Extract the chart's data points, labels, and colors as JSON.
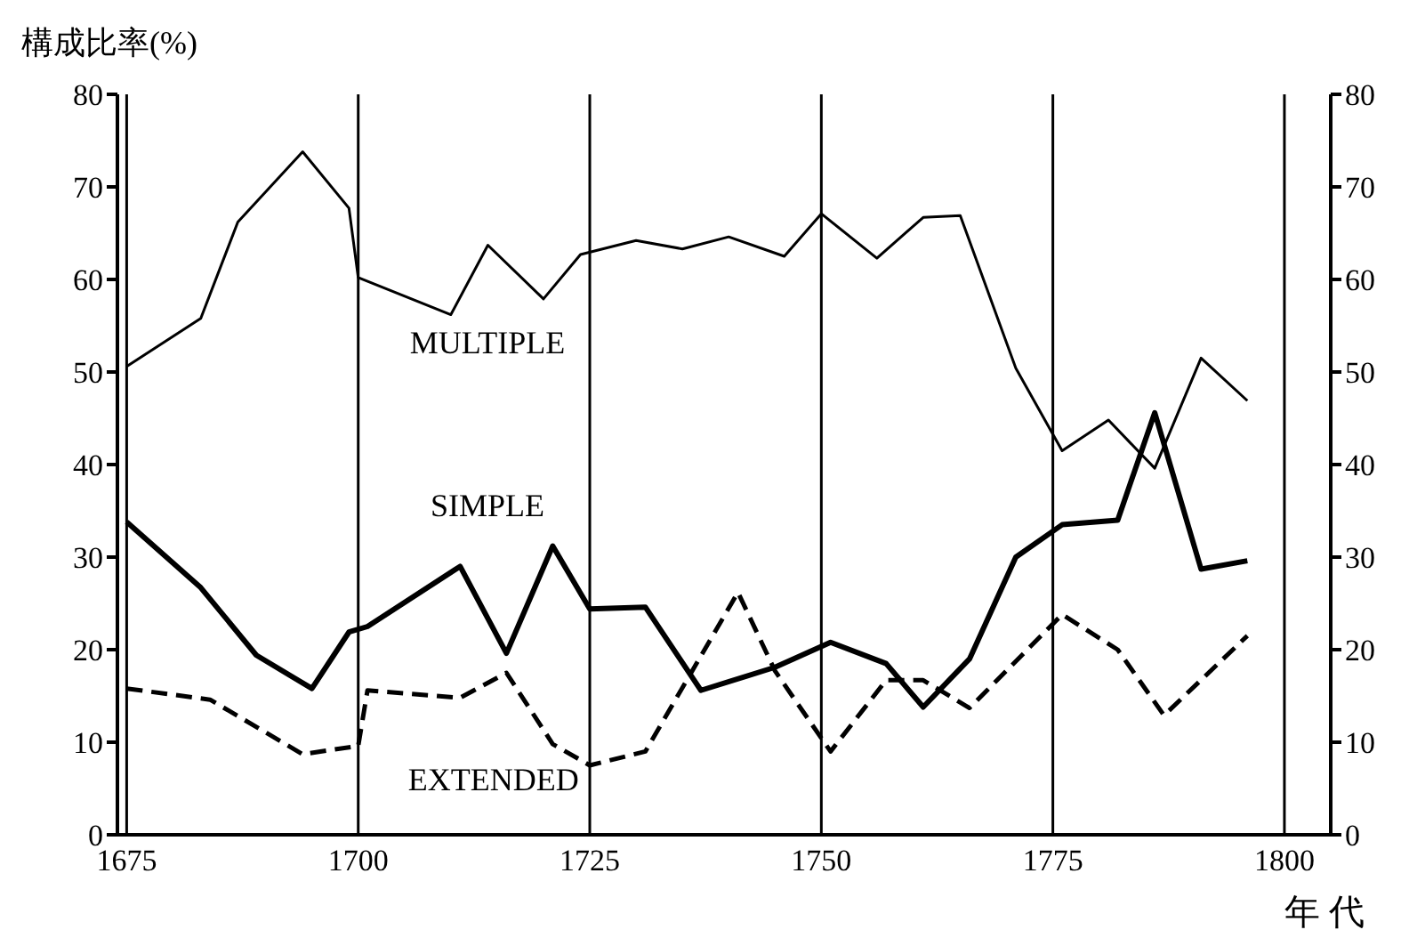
{
  "chart_data": {
    "type": "line",
    "ylabel": "構成比率(%)",
    "xlabel": "年 代",
    "xlim": [
      1674,
      1805
    ],
    "xticks": [
      1675,
      1700,
      1725,
      1750,
      1775,
      1800
    ],
    "ylim": [
      0,
      80
    ],
    "yticks": [
      0,
      10,
      20,
      30,
      40,
      50,
      60,
      70,
      80
    ],
    "y2lim": [
      0,
      80
    ],
    "y2ticks": [
      0,
      10,
      20,
      30,
      40,
      50,
      60,
      70,
      80
    ],
    "grid": "x",
    "marker": "none",
    "series": [
      {
        "name": "MULTIPLE",
        "color": "#000000",
        "line_style": "solid",
        "x": [
          1675,
          1683,
          1687,
          1694,
          1699,
          1700,
          1710,
          1714,
          1720,
          1724,
          1730,
          1735,
          1740,
          1746,
          1750,
          1756,
          1761,
          1765,
          1771,
          1776,
          1781,
          1786,
          1791,
          1796
        ],
        "values": [
          50.6,
          55.8,
          66.2,
          73.8,
          67.7,
          60.2,
          56.2,
          63.7,
          57.9,
          62.7,
          64.2,
          63.3,
          64.6,
          62.5,
          67.1,
          62.3,
          66.7,
          66.9,
          50.4,
          41.5,
          44.8,
          39.6,
          51.5,
          46.9
        ]
      },
      {
        "name": "SIMPLE",
        "color": "#000000",
        "line_style": "solid",
        "x": [
          1675,
          1683,
          1689,
          1695,
          1699,
          1701,
          1711,
          1716,
          1721,
          1725,
          1731,
          1737,
          1745,
          1751,
          1757,
          1761,
          1766,
          1771,
          1776,
          1782,
          1786,
          1791,
          1796
        ],
        "values": [
          33.8,
          26.7,
          19.4,
          15.8,
          21.9,
          22.5,
          29,
          19.6,
          31.2,
          24.4,
          24.6,
          15.6,
          18.1,
          20.8,
          18.5,
          13.8,
          19,
          30,
          33.5,
          34,
          45.6,
          28.7,
          29.6
        ]
      },
      {
        "name": "EXTENDED",
        "color": "#000000",
        "line_style": "dashed",
        "x": [
          1675,
          1684,
          1694,
          1700,
          1701,
          1711,
          1716,
          1721,
          1725,
          1731,
          1741,
          1745,
          1751,
          1757,
          1761,
          1766,
          1776,
          1782,
          1787,
          1796
        ],
        "values": [
          15.8,
          14.6,
          8.7,
          9.6,
          15.6,
          14.8,
          17.5,
          9.8,
          7.5,
          9,
          26.2,
          17.7,
          9,
          16.7,
          16.7,
          13.7,
          23.8,
          20,
          12.9,
          21.5
        ]
      }
    ]
  }
}
